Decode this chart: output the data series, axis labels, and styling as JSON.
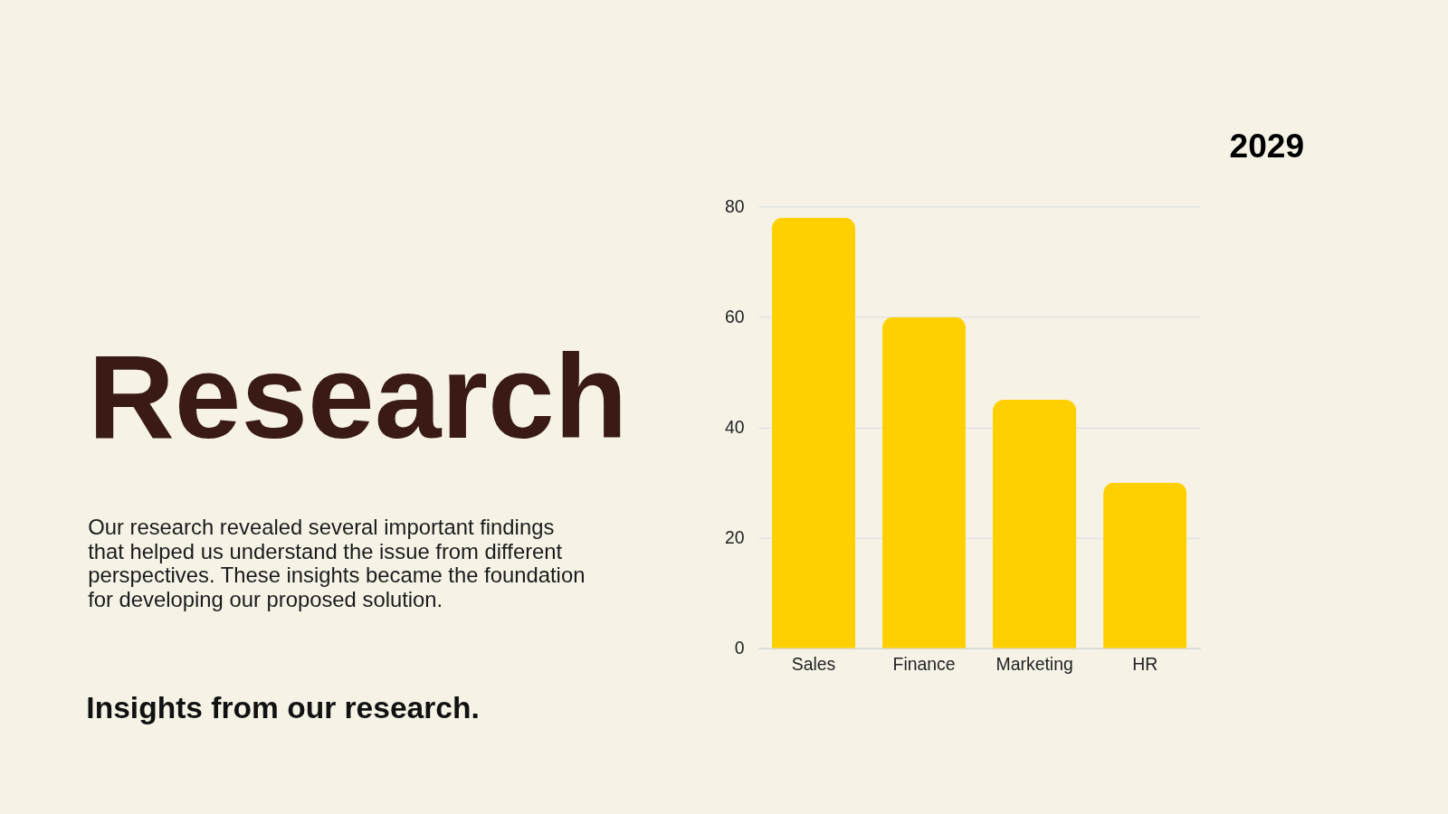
{
  "chart_data": {
    "type": "bar",
    "title": "Research",
    "subtitle": "Insights from our research.",
    "annotations": [
      "2029",
      "Our research revealed several important findings that helped us understand the issue from different perspectives. These insights became the foundation for developing our proposed solution."
    ],
    "categories": [
      "Sales",
      "Finance",
      "Marketing",
      "HR"
    ],
    "values": [
      78,
      60,
      45,
      30
    ],
    "color": "#ffd000",
    "ylim": [
      0,
      80
    ],
    "yticks": [
      0,
      20,
      40,
      60,
      80
    ],
    "grid": "y"
  }
}
